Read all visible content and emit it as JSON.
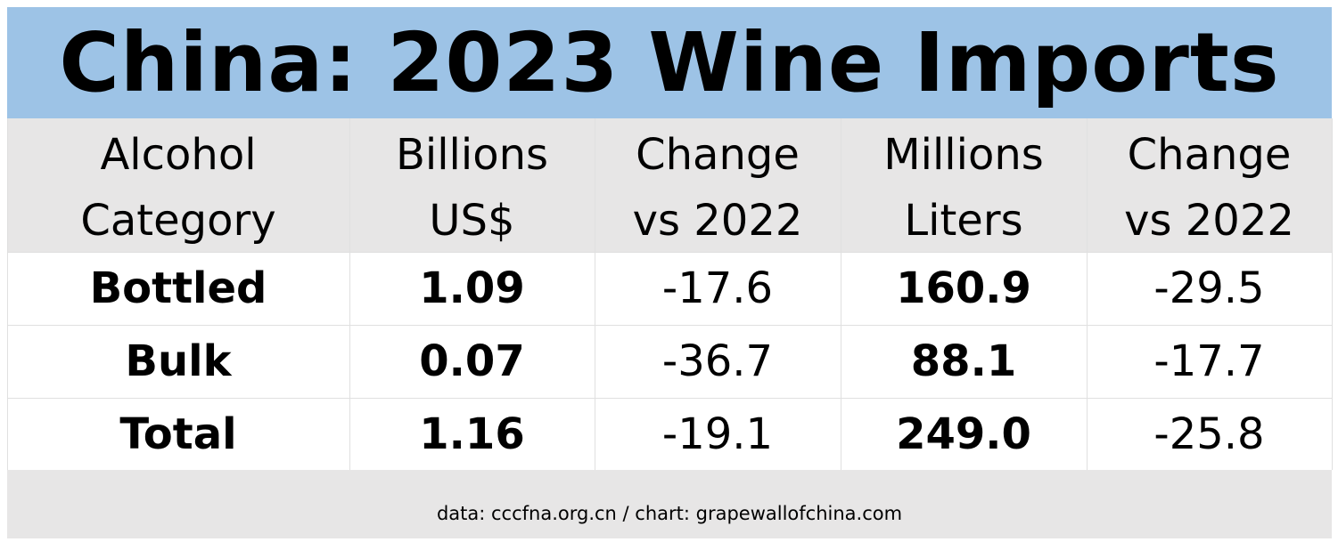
{
  "title": "China: 2023 Wine Imports",
  "table": {
    "header": [
      [
        "Alcohol",
        "Category"
      ],
      [
        "Billions",
        "US$"
      ],
      [
        "Change",
        "vs 2022"
      ],
      [
        "Millions",
        "Liters"
      ],
      [
        "Change",
        "vs 2022"
      ]
    ],
    "rows": [
      [
        "Bottled",
        "1.09",
        "-17.6",
        "160.9",
        "-29.5"
      ],
      [
        "Bulk",
        "0.07",
        "-36.7",
        "88.1",
        "-17.7"
      ],
      [
        "Total",
        "1.16",
        "-19.1",
        "249.0",
        "-25.8"
      ]
    ]
  },
  "footer": "data: cccfna.org.cn / chart: grapewallofchina.com"
}
